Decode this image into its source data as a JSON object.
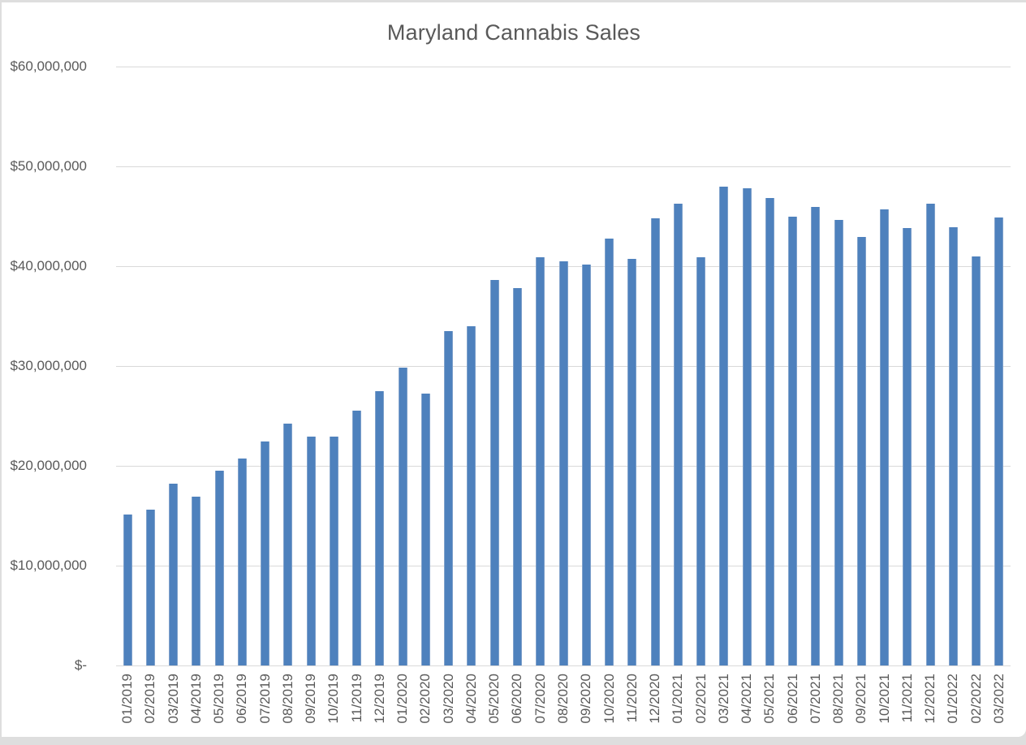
{
  "chart_data": {
    "type": "bar",
    "title": "Maryland Cannabis Sales",
    "xlabel": "",
    "ylabel": "",
    "categories": [
      "01/2019",
      "02/2019",
      "03/2019",
      "04/2019",
      "05/2019",
      "06/2019",
      "07/2019",
      "08/2019",
      "09/2019",
      "10/2019",
      "11/2019",
      "12/2019",
      "01/2020",
      "02/2020",
      "03/2020",
      "04/2020",
      "05/2020",
      "06/2020",
      "07/2020",
      "08/2020",
      "09/2020",
      "10/2020",
      "11/2020",
      "12/2020",
      "01/2021",
      "02/2021",
      "03/2021",
      "04/2021",
      "05/2021",
      "06/2021",
      "07/2021",
      "08/2021",
      "09/2021",
      "10/2021",
      "11/2021",
      "12/2021",
      "01/2022",
      "02/2022",
      "03/2022"
    ],
    "values": [
      15100000,
      15600000,
      18200000,
      16900000,
      19500000,
      20700000,
      22400000,
      24200000,
      22900000,
      22900000,
      25500000,
      27500000,
      29800000,
      27200000,
      33500000,
      34000000,
      38600000,
      37800000,
      40900000,
      40500000,
      40200000,
      42800000,
      40700000,
      44800000,
      46300000,
      40900000,
      48000000,
      47800000,
      46800000,
      45000000,
      45900000,
      44600000,
      42900000,
      45700000,
      43800000,
      46300000,
      43900000,
      41000000,
      44900000
    ],
    "ylim": [
      0,
      60000000
    ],
    "y_ticks": [
      60000000,
      50000000,
      40000000,
      30000000,
      20000000,
      10000000,
      0
    ],
    "y_tick_labels": [
      "$60,000,000",
      "$50,000,000",
      "$40,000,000",
      "$30,000,000",
      "$20,000,000",
      "$10,000,000",
      "$-"
    ],
    "grid": true,
    "legend": false,
    "bar_color": "#4e81bd",
    "gridline_color": "#d9d9d9",
    "text_color": "#595959"
  }
}
